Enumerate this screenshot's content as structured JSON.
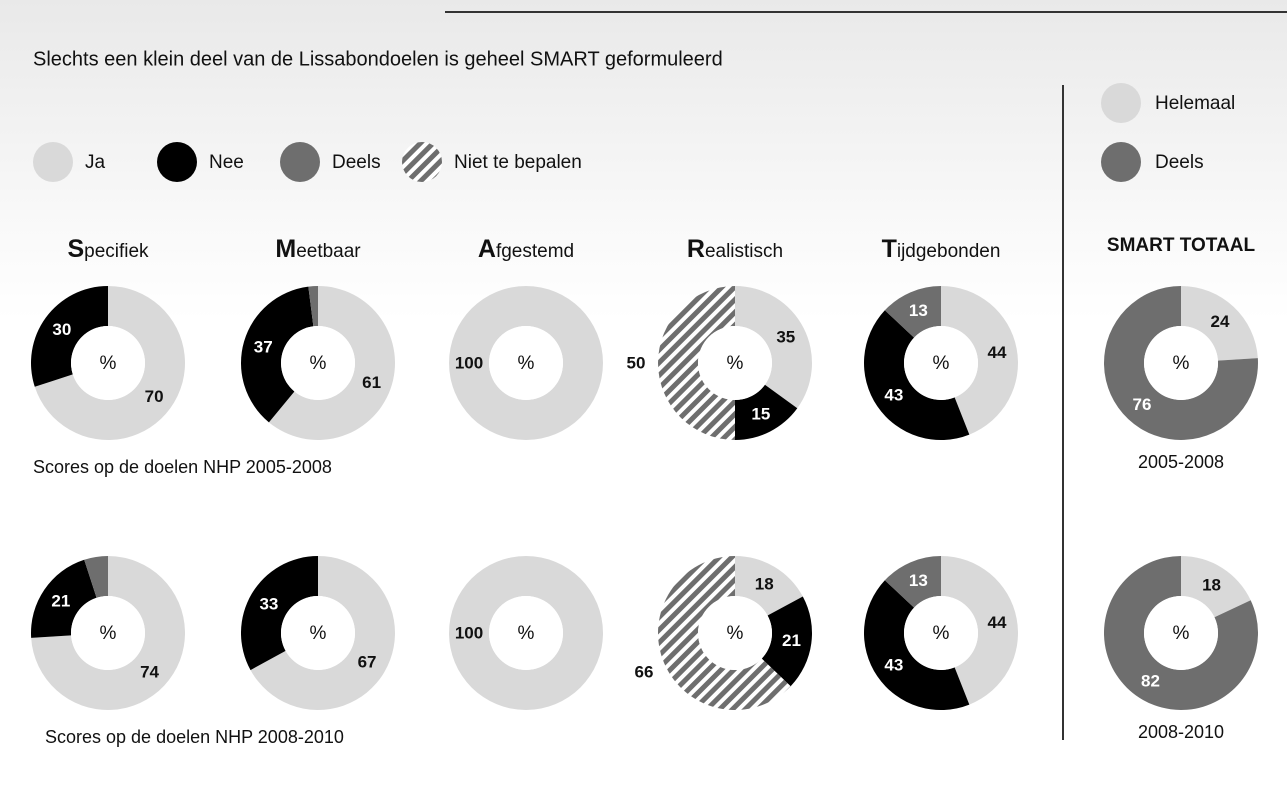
{
  "title": "Slechts een klein deel van de Lissabondoelen is geheel SMART geformuleerd",
  "legend": [
    {
      "name": "Ja",
      "color": "#d9d9d9"
    },
    {
      "name": "Nee",
      "color": "#000000"
    },
    {
      "name": "Deels",
      "color": "#6e6e6e"
    },
    {
      "name": "Niet te bepalen",
      "color": "#6e6e6e",
      "pattern": "hatch"
    }
  ],
  "legend_smart": [
    {
      "name": "Helemaal",
      "color": "#d9d9d9"
    },
    {
      "name": "Deels",
      "color": "#6e6e6e"
    }
  ],
  "columns": [
    "Specifiek",
    "Meetbaar",
    "Afgestemd",
    "Realistisch",
    "Tijdgebonden",
    "SMART TOTAAL"
  ],
  "row_captions": [
    "Scores op de doelen NHP 2005-2008",
    "Scores op de doelen NHP 2008-2010"
  ],
  "smart_captions": [
    "2005-2008",
    "2008-2010"
  ],
  "chart_data": [
    {
      "type": "pie",
      "categories": [
        "Ja",
        "Nee"
      ],
      "values": [
        70,
        30
      ],
      "center_label": "%"
    },
    {
      "type": "pie",
      "categories": [
        "Ja",
        "Nee",
        "Deels"
      ],
      "values": [
        61,
        37,
        2
      ],
      "center_label": "%"
    },
    {
      "type": "pie",
      "categories": [
        "Ja"
      ],
      "values": [
        100
      ],
      "center_label": "%"
    },
    {
      "type": "pie",
      "categories": [
        "Ja",
        "Nee",
        "Niet te bepalen"
      ],
      "values": [
        35,
        15,
        50
      ],
      "center_label": "%"
    },
    {
      "type": "pie",
      "categories": [
        "Ja",
        "Nee",
        "Deels"
      ],
      "values": [
        44,
        43,
        13
      ],
      "center_label": "%"
    },
    {
      "type": "pie",
      "categories": [
        "Helemaal",
        "Deels"
      ],
      "values": [
        24,
        76
      ],
      "center_label": "%"
    },
    {
      "type": "pie",
      "categories": [
        "Ja",
        "Nee",
        "Deels"
      ],
      "values": [
        74,
        21,
        5
      ],
      "center_label": "%"
    },
    {
      "type": "pie",
      "categories": [
        "Ja",
        "Nee"
      ],
      "values": [
        67,
        33
      ],
      "center_label": "%"
    },
    {
      "type": "pie",
      "categories": [
        "Ja"
      ],
      "values": [
        100
      ],
      "center_label": "%"
    },
    {
      "type": "pie",
      "categories": [
        "Ja",
        "Nee",
        "Niet te bepalen"
      ],
      "values": [
        18,
        21,
        66
      ],
      "center_label": "%"
    },
    {
      "type": "pie",
      "categories": [
        "Ja",
        "Nee",
        "Deels"
      ],
      "values": [
        44,
        43,
        13
      ],
      "center_label": "%"
    },
    {
      "type": "pie",
      "categories": [
        "Helemaal",
        "Deels"
      ],
      "values": [
        18,
        82
      ],
      "center_label": "%"
    }
  ]
}
